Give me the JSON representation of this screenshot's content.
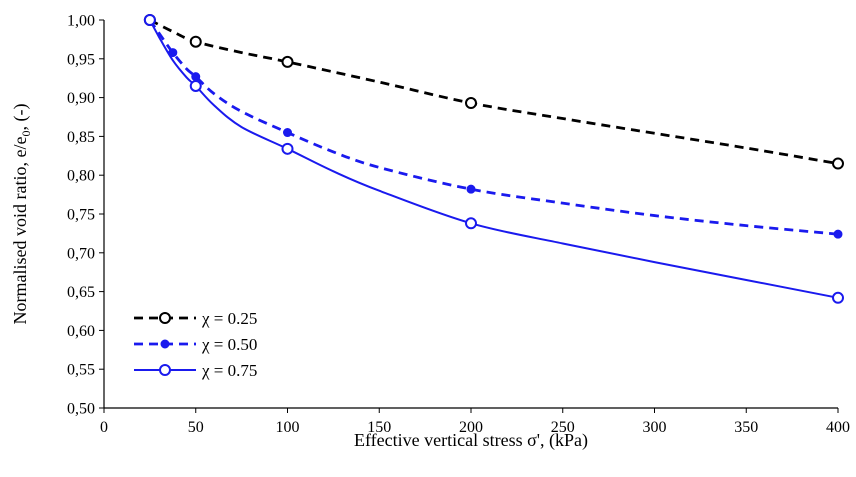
{
  "chart_data": {
    "type": "line",
    "title": "",
    "xlabel": "Effective vertical stress σ', (kPa)",
    "ylabel_main": "Normalised void ratio, e/e",
    "ylabel_sub": "0",
    "ylabel_tail": ", (-)",
    "xlim": [
      0,
      400
    ],
    "ylim": [
      0.5,
      1.0
    ],
    "x_ticks": [
      0,
      50,
      100,
      150,
      200,
      250,
      300,
      350,
      400
    ],
    "x_tick_labels": [
      "0",
      "50",
      "100",
      "150",
      "200",
      "250",
      "300",
      "350",
      "400"
    ],
    "y_ticks": [
      0.5,
      0.55,
      0.6,
      0.65,
      0.7,
      0.75,
      0.8,
      0.85,
      0.9,
      0.95,
      1.0
    ],
    "y_tick_labels": [
      "0,50",
      "0,55",
      "0,60",
      "0,65",
      "0,70",
      "0,75",
      "0,80",
      "0,85",
      "0,90",
      "0,95",
      "1,00"
    ],
    "grid": false,
    "legend_position": "bottom-left",
    "series": [
      {
        "name": "χ = 0.25",
        "color": "#000000",
        "line_style": "dashed",
        "marker": "open-circle",
        "points": [
          [
            25,
            1.0
          ],
          [
            50,
            0.972
          ],
          [
            100,
            0.946
          ],
          [
            200,
            0.893
          ],
          [
            400,
            0.815
          ]
        ],
        "curve": [
          [
            25,
            1.0
          ],
          [
            37.5,
            0.985
          ],
          [
            50,
            0.972
          ],
          [
            75,
            0.958
          ],
          [
            100,
            0.946
          ],
          [
            150,
            0.92
          ],
          [
            200,
            0.893
          ],
          [
            250,
            0.873
          ],
          [
            300,
            0.854
          ],
          [
            350,
            0.835
          ],
          [
            400,
            0.815
          ]
        ]
      },
      {
        "name": "χ = 0.50",
        "color": "#1a1aee",
        "line_style": "dashed",
        "marker": "filled-circle",
        "points": [
          [
            25,
            1.0
          ],
          [
            37.5,
            0.958
          ],
          [
            50,
            0.927
          ],
          [
            100,
            0.855
          ],
          [
            200,
            0.782
          ],
          [
            400,
            0.724
          ]
        ],
        "curve": [
          [
            25,
            1.0
          ],
          [
            30,
            0.983
          ],
          [
            37.5,
            0.958
          ],
          [
            45,
            0.937
          ],
          [
            50,
            0.927
          ],
          [
            60,
            0.905
          ],
          [
            75,
            0.882
          ],
          [
            100,
            0.855
          ],
          [
            125,
            0.83
          ],
          [
            150,
            0.81
          ],
          [
            200,
            0.782
          ],
          [
            250,
            0.764
          ],
          [
            300,
            0.748
          ],
          [
            350,
            0.735
          ],
          [
            400,
            0.724
          ]
        ]
      },
      {
        "name": "χ = 0.75",
        "color": "#1a1aee",
        "line_style": "solid",
        "marker": "open-circle",
        "points": [
          [
            25,
            1.0
          ],
          [
            50,
            0.915
          ],
          [
            100,
            0.834
          ],
          [
            200,
            0.738
          ],
          [
            400,
            0.642
          ]
        ],
        "curve": [
          [
            25,
            1.0
          ],
          [
            30,
            0.978
          ],
          [
            37.5,
            0.948
          ],
          [
            45,
            0.926
          ],
          [
            50,
            0.915
          ],
          [
            60,
            0.89
          ],
          [
            75,
            0.862
          ],
          [
            100,
            0.834
          ],
          [
            125,
            0.805
          ],
          [
            150,
            0.78
          ],
          [
            200,
            0.738
          ],
          [
            250,
            0.712
          ],
          [
            300,
            0.688
          ],
          [
            350,
            0.665
          ],
          [
            400,
            0.642
          ]
        ]
      }
    ]
  }
}
